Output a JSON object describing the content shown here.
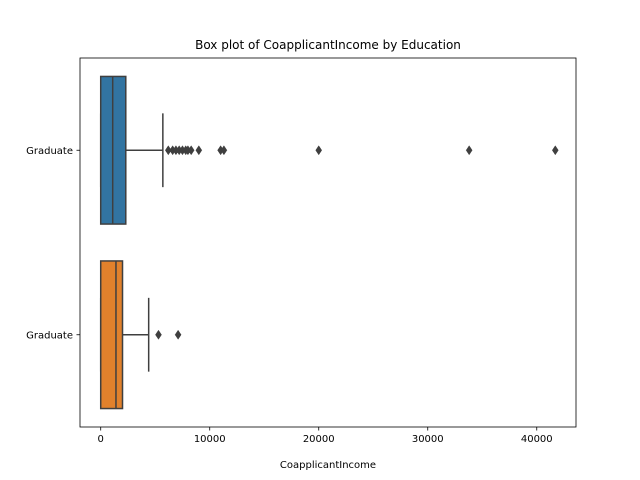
{
  "chart_data": {
    "type": "boxplot",
    "orientation": "horizontal",
    "title": "Box plot of CoapplicantIncome by Education",
    "xlabel": "CoapplicantIncome",
    "ylabel": "",
    "xlim": [
      -1900,
      43600
    ],
    "xticks": [
      0,
      10000,
      20000,
      30000,
      40000
    ],
    "xtick_labels": [
      "0",
      "10000",
      "20000",
      "30000",
      "40000"
    ],
    "grid": false,
    "series": [
      {
        "category": "Graduate",
        "color": "#3274a1",
        "min": 0,
        "q1": 0,
        "median": 1100,
        "q3": 2300,
        "max": 5700,
        "outliers": [
          6200,
          6600,
          6900,
          7200,
          7500,
          7800,
          8000,
          8300,
          9000,
          11000,
          11300,
          20000,
          33800,
          41700
        ]
      },
      {
        "category": "Graduate",
        "color": "#e1812c",
        "min": 0,
        "q1": 0,
        "median": 1400,
        "q3": 2000,
        "max": 4400,
        "outliers": [
          5300,
          7100
        ]
      }
    ]
  }
}
